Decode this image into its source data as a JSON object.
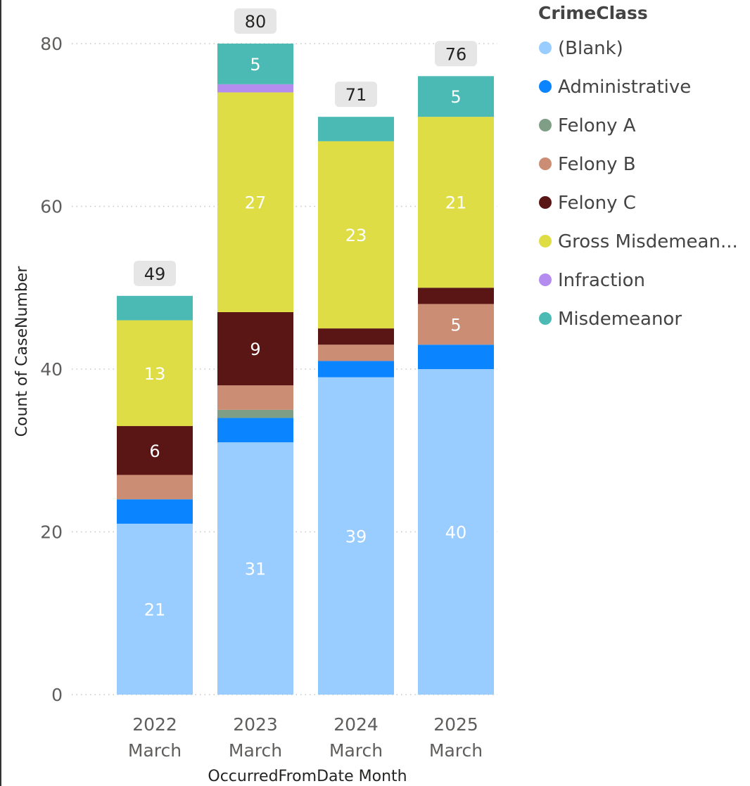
{
  "chart_data": {
    "type": "bar",
    "stacked": true,
    "xlabel": "OccurredFromDate Month",
    "ylabel": "Count of CaseNumber",
    "ylim": [
      0,
      80
    ],
    "yticks": [
      0,
      20,
      40,
      60,
      80
    ],
    "grid": true,
    "legend_title": "CrimeClass",
    "legend_position": "right",
    "categories": [
      {
        "year": "2022",
        "month": "March"
      },
      {
        "year": "2023",
        "month": "March"
      },
      {
        "year": "2024",
        "month": "March"
      },
      {
        "year": "2025",
        "month": "March"
      }
    ],
    "totals": [
      49,
      80,
      71,
      76
    ],
    "series": [
      {
        "name": "(Blank)",
        "color": "#99CCFF",
        "values": [
          21,
          31,
          39,
          40
        ],
        "labels": [
          "21",
          "31",
          "39",
          "40"
        ],
        "label_color": "#ffffff"
      },
      {
        "name": "Administrative",
        "color": "#0B84FF",
        "values": [
          3,
          3,
          2,
          3
        ],
        "labels": [
          "",
          "",
          "",
          ""
        ],
        "label_color": "#ffffff"
      },
      {
        "name": "Felony A",
        "color": "#7E9F86",
        "values": [
          0,
          1,
          0,
          0
        ],
        "labels": [
          "",
          "",
          "",
          ""
        ],
        "label_color": "#ffffff"
      },
      {
        "name": "Felony B",
        "color": "#CB8D74",
        "values": [
          3,
          3,
          2,
          5
        ],
        "labels": [
          "",
          "",
          "",
          "5"
        ],
        "label_color": "#ffffff"
      },
      {
        "name": "Felony C",
        "color": "#5A1515",
        "values": [
          6,
          9,
          2,
          2
        ],
        "labels": [
          "6",
          "9",
          "",
          ""
        ],
        "label_color": "#ffffff"
      },
      {
        "name": "Gross Misdemean...",
        "color": "#DFDD45",
        "values": [
          13,
          27,
          23,
          21
        ],
        "labels": [
          "13",
          "27",
          "23",
          "21"
        ],
        "label_color": "#ffffff"
      },
      {
        "name": "Infraction",
        "color": "#B48CF0",
        "values": [
          0,
          1,
          0,
          0
        ],
        "labels": [
          "",
          "",
          "",
          ""
        ],
        "label_color": "#ffffff"
      },
      {
        "name": "Misdemeanor",
        "color": "#4CBAB4",
        "values": [
          3,
          5,
          3,
          5
        ],
        "labels": [
          "",
          "5",
          "",
          "5"
        ],
        "label_color": "#ffffff"
      }
    ]
  }
}
